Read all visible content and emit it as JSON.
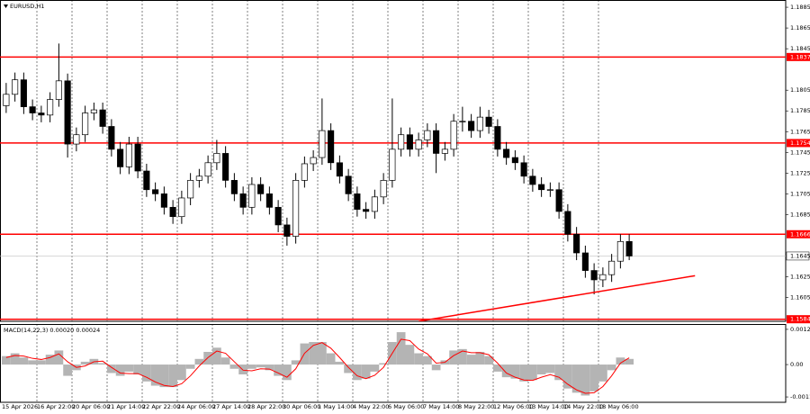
{
  "chart_data": {
    "type": "candlestick",
    "title": "EURUSD,H1",
    "categories": [
      "15 Apr 2026",
      null,
      null,
      null,
      "16 Apr 22:00",
      null,
      null,
      null,
      "20 Apr 06:00",
      null,
      null,
      null,
      "21 Apr 14:00",
      null,
      null,
      null,
      "22 Apr 22:00",
      null,
      null,
      null,
      "24 Apr 06:00",
      null,
      null,
      null,
      "27 Apr 14:00",
      null,
      null,
      null,
      "28 Apr 22:00",
      null,
      null,
      null,
      "30 Apr 06:00",
      null,
      null,
      null,
      "1 May 14:00",
      null,
      null,
      null,
      "4 May 22:00",
      null,
      null,
      null,
      "6 May 06:00",
      null,
      null,
      null,
      "7 May 14:00",
      null,
      null,
      null,
      "8 May 22:00",
      null,
      null,
      null,
      "12 May 06:00",
      null,
      null,
      null,
      "13 May 14:00",
      null,
      null,
      null,
      "14 May 22:00",
      null,
      null,
      null,
      "18 May 06:00",
      null,
      null,
      null
    ],
    "open": [
      1.179,
      1.1801,
      1.1815,
      1.1789,
      1.1783,
      1.1781,
      1.1796,
      1.1814,
      1.1753,
      1.1762,
      1.1783,
      1.1786,
      1.177,
      1.1748,
      1.1731,
      1.1753,
      1.1727,
      1.1709,
      1.1705,
      1.1692,
      1.1683,
      1.1701,
      1.1718,
      1.1722,
      1.1735,
      1.1744,
      1.1718,
      1.1705,
      1.1692,
      1.1714,
      1.1705,
      1.1692,
      1.1675,
      1.1664,
      1.1718,
      1.1734,
      1.174,
      1.1766,
      1.1735,
      1.1722,
      1.1705,
      1.169,
      1.1688,
      1.1702,
      1.1718,
      1.1748,
      1.1762,
      1.1748,
      1.1757,
      1.1766,
      1.1744,
      1.1748,
      1.1775,
      1.1775,
      1.1766,
      1.1779,
      1.177,
      1.1748,
      1.174,
      1.1735,
      1.1722,
      1.1714,
      1.1709,
      1.1709,
      1.1688,
      1.1666,
      1.1648,
      1.1631,
      1.1622,
      1.1627,
      1.164,
      1.1659
    ],
    "high": [
      1.1812,
      1.1822,
      1.1822,
      1.1796,
      1.179,
      1.1803,
      1.185,
      1.1821,
      1.1769,
      1.179,
      1.1793,
      1.1793,
      1.1777,
      1.1755,
      1.176,
      1.176,
      1.1734,
      1.1716,
      1.1712,
      1.1699,
      1.1708,
      1.1725,
      1.1729,
      1.1742,
      1.1757,
      1.1751,
      1.1725,
      1.1712,
      1.1721,
      1.1721,
      1.1712,
      1.1699,
      1.1682,
      1.1725,
      1.1741,
      1.1747,
      1.1797,
      1.1773,
      1.1742,
      1.1729,
      1.1712,
      1.1697,
      1.1709,
      1.1725,
      1.1797,
      1.1769,
      1.1769,
      1.1764,
      1.1773,
      1.1773,
      1.1755,
      1.1782,
      1.1789,
      1.1782,
      1.1789,
      1.1786,
      1.1777,
      1.1755,
      1.1747,
      1.1742,
      1.1729,
      1.1721,
      1.1716,
      1.1716,
      1.1695,
      1.1673,
      1.1655,
      1.1638,
      1.1634,
      1.1647,
      1.1666,
      1.1666
    ],
    "low": [
      1.1783,
      1.1794,
      1.1782,
      1.1776,
      1.1774,
      1.1774,
      1.1789,
      1.174,
      1.1746,
      1.1755,
      1.1776,
      1.1763,
      1.1741,
      1.1724,
      1.1724,
      1.172,
      1.1702,
      1.1698,
      1.1685,
      1.1676,
      1.1676,
      1.1694,
      1.1711,
      1.1715,
      1.1728,
      1.1711,
      1.1698,
      1.1685,
      1.1685,
      1.1698,
      1.1685,
      1.1668,
      1.1655,
      1.1657,
      1.1711,
      1.1727,
      1.1733,
      1.1728,
      1.1715,
      1.1698,
      1.1683,
      1.1681,
      1.1681,
      1.1695,
      1.1711,
      1.1741,
      1.1741,
      1.1741,
      1.175,
      1.1725,
      1.1737,
      1.1741,
      1.1765,
      1.1759,
      1.1759,
      1.1763,
      1.1741,
      1.1733,
      1.1728,
      1.1715,
      1.1707,
      1.1702,
      1.1702,
      1.1681,
      1.1659,
      1.1641,
      1.1624,
      1.1608,
      1.1615,
      1.162,
      1.1633,
      1.1641
    ],
    "close": [
      1.1801,
      1.1815,
      1.1789,
      1.1783,
      1.1781,
      1.1796,
      1.1814,
      1.1753,
      1.1762,
      1.1783,
      1.1786,
      1.177,
      1.1748,
      1.1731,
      1.1753,
      1.1727,
      1.1709,
      1.1705,
      1.1692,
      1.1683,
      1.1701,
      1.1718,
      1.1722,
      1.1735,
      1.1744,
      1.1718,
      1.1705,
      1.1692,
      1.1714,
      1.1705,
      1.1692,
      1.1675,
      1.1664,
      1.1718,
      1.1734,
      1.174,
      1.1766,
      1.1735,
      1.1722,
      1.1705,
      1.169,
      1.1688,
      1.1702,
      1.1718,
      1.1748,
      1.1762,
      1.1748,
      1.1757,
      1.1766,
      1.1744,
      1.1748,
      1.1775,
      1.1775,
      1.1766,
      1.1779,
      1.177,
      1.1748,
      1.174,
      1.1735,
      1.1722,
      1.1714,
      1.1709,
      1.1709,
      1.1688,
      1.1666,
      1.1648,
      1.1631,
      1.1622,
      1.1627,
      1.164,
      1.1659,
      1.1645
    ],
    "up_color": "#ffffff",
    "down_color": "#000000",
    "ylim": [
      1.1582,
      1.1892
    ],
    "yticks": [
      1.1885,
      1.1865,
      1.1845,
      1.1805,
      1.1785,
      1.1765,
      1.1745,
      1.1725,
      1.1705,
      1.1685,
      1.1625,
      1.1605
    ],
    "levels": [
      1.1837,
      1.1754,
      1.1666,
      1.1584
    ],
    "level_color": "#ff0000",
    "current_price": 1.1645,
    "trendline": {
      "x": [
        47,
        78.5
      ],
      "y": [
        1.1582,
        1.1626
      ],
      "color": "#ff0000"
    },
    "grid": true,
    "macd": {
      "label": "MACD(14,22,3) 0.00020 0.00024",
      "histogram": [
        0.0003,
        0.0004,
        0.00025,
        0.00015,
        0.00015,
        0.00035,
        0.0005,
        -0.0004,
        -0.0002,
        0.0001,
        0.0002,
        5e-05,
        -0.0003,
        -0.0004,
        -0.00025,
        -0.00035,
        -0.0006,
        -0.00075,
        -0.0008,
        -0.0008,
        -0.00055,
        -0.00015,
        0.0002,
        0.00045,
        0.0006,
        0.00025,
        -0.00015,
        -0.00035,
        -0.00015,
        -0.0001,
        -0.0002,
        -0.0004,
        -0.00055,
        0.00015,
        0.00075,
        0.0008,
        0.0008,
        0.0004,
        0.0001,
        -0.0003,
        -0.00055,
        -0.0005,
        -0.00025,
        5e-05,
        0.0008,
        0.00115,
        0.0007,
        0.0004,
        0.0003,
        -0.0002,
        0.00015,
        0.0005,
        0.00055,
        0.00035,
        0.00045,
        0.0003,
        -0.00025,
        -0.00045,
        -0.0005,
        -0.0006,
        -0.00055,
        -0.00035,
        -0.0003,
        -0.00055,
        -0.00085,
        -0.001,
        -0.0011,
        -0.00095,
        -0.0006,
        -0.0002,
        0.00025,
        0.0002
      ],
      "signal": [
        0.00025,
        0.00032,
        0.0003,
        0.00022,
        0.00018,
        0.00025,
        0.00038,
        0.0001,
        -0.0001,
        -5e-05,
        0.0001,
        0.00012,
        -0.0001,
        -0.0003,
        -0.00032,
        -0.00032,
        -0.00045,
        -0.00062,
        -0.00074,
        -0.00078,
        -0.00068,
        -0.0004,
        -5e-05,
        0.00025,
        0.00048,
        0.0004,
        0.0001,
        -0.0002,
        -0.00022,
        -0.00015,
        -0.00016,
        -0.0003,
        -0.00045,
        -0.00015,
        0.0004,
        0.00068,
        0.00078,
        0.00058,
        0.00025,
        -0.0001,
        -0.0004,
        -0.0005,
        -0.00038,
        -0.0001,
        0.0004,
        0.0009,
        0.00085,
        0.00055,
        0.00038,
        5e-05,
        8e-05,
        0.00032,
        0.00048,
        0.00042,
        0.00042,
        0.00035,
        5e-05,
        -0.0003,
        -0.00045,
        -0.00055,
        -0.00056,
        -0.00045,
        -0.00036,
        -0.00045,
        -0.0007,
        -0.0009,
        -0.00102,
        -0.001,
        -0.00078,
        -0.0004,
        5e-05,
        0.00024
      ],
      "histogram_color": "#b4b4b4",
      "signal_color": "#ff0000",
      "ylim": [
        -0.00134,
        0.00144
      ],
      "yticks": [
        0.00125,
        {
          "value": 0,
          "label": "0.00"
        },
        -0.00115
      ]
    }
  }
}
